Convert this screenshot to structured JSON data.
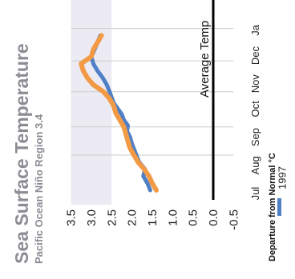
{
  "chart_data": {
    "type": "line",
    "title": "Sea Surface Temperature",
    "subtitle": "Pacific Ocean Niño Region 3.4",
    "ylabel": "Departure from Normal °C",
    "ylim": [
      -0.5,
      3.5
    ],
    "yticks": [
      "3.5",
      "3.0",
      "2.5",
      "2.0",
      "1.5",
      "1.0",
      "0.5",
      "0.0",
      "-0.5"
    ],
    "months": [
      "Jul",
      "Aug",
      "Sep",
      "Oct",
      "Nov",
      "Dec",
      "Ja"
    ],
    "shaded_threshold": 2.5,
    "average_label": "Average Temp",
    "average_value": 0.0,
    "grid": true,
    "legend_position": "right",
    "series": [
      {
        "name": "1997",
        "color": "#4f7fc5",
        "x": [
          0.0,
          0.05,
          0.1,
          0.15,
          0.2,
          0.24,
          0.28,
          0.33,
          0.38,
          0.42,
          0.46,
          0.5,
          0.54,
          0.58,
          0.62,
          0.66,
          0.7,
          0.75,
          0.8,
          0.85,
          0.9,
          0.95,
          1.0,
          1.05,
          1.1
        ],
        "values": [
          1.55,
          1.62,
          1.72,
          1.68,
          1.82,
          1.88,
          1.93,
          2.0,
          2.05,
          2.12,
          2.1,
          2.2,
          2.25,
          2.35,
          2.45,
          2.5,
          2.55,
          2.62,
          2.72,
          2.85,
          2.95,
          3.0,
          2.92,
          2.85,
          2.78
        ]
      },
      {
        "name": "",
        "color": "#f39a45",
        "x": [
          0.0,
          0.05,
          0.1,
          0.15,
          0.2,
          0.25,
          0.3,
          0.35,
          0.4,
          0.45,
          0.5,
          0.55,
          0.6,
          0.65,
          0.7,
          0.75,
          0.8,
          0.85,
          0.9,
          0.95,
          1.0,
          1.05,
          1.1
        ],
        "values": [
          1.4,
          1.5,
          1.58,
          1.7,
          1.85,
          1.95,
          2.05,
          2.1,
          2.15,
          2.2,
          2.3,
          2.4,
          2.45,
          2.55,
          2.7,
          2.95,
          3.1,
          3.2,
          3.25,
          3.0,
          2.95,
          2.85,
          2.75
        ]
      }
    ]
  }
}
